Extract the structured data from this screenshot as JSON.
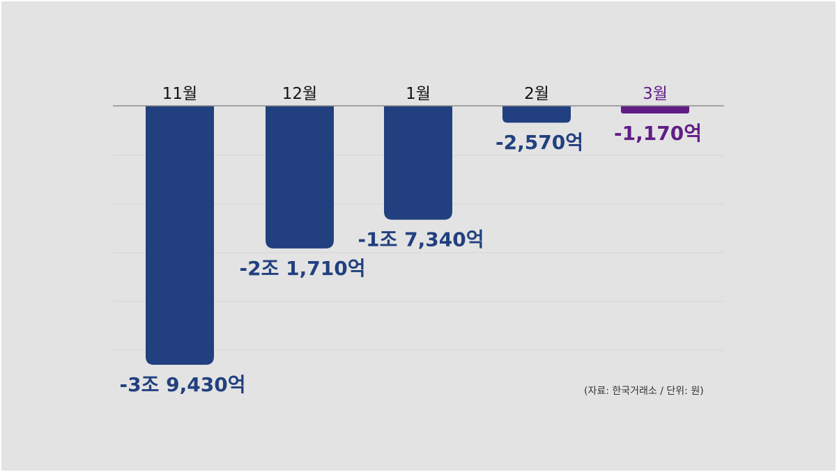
{
  "colors": {
    "background": "#e3e3e3",
    "bar": "#22407f",
    "highlight": "#611d86",
    "gridline": "#d6d6d6",
    "baseline": "#8c8c8c",
    "month_text": "#111111"
  },
  "source_note": "(자료: 한국거래소 / 단위: 원)",
  "chart_data": {
    "type": "bar",
    "categories": [
      "11월",
      "12월",
      "1월",
      "2월",
      "3월"
    ],
    "values": [
      -39430,
      -21710,
      -17340,
      -2570,
      -1170
    ],
    "value_labels": [
      "-3조 9,430억",
      "-2조 1,710억",
      "-1조 7,340억",
      "-2,570억",
      "-1,170억"
    ],
    "highlight_index": 4,
    "unit": "억",
    "ylim": [
      -40000,
      0
    ],
    "grid": true
  }
}
